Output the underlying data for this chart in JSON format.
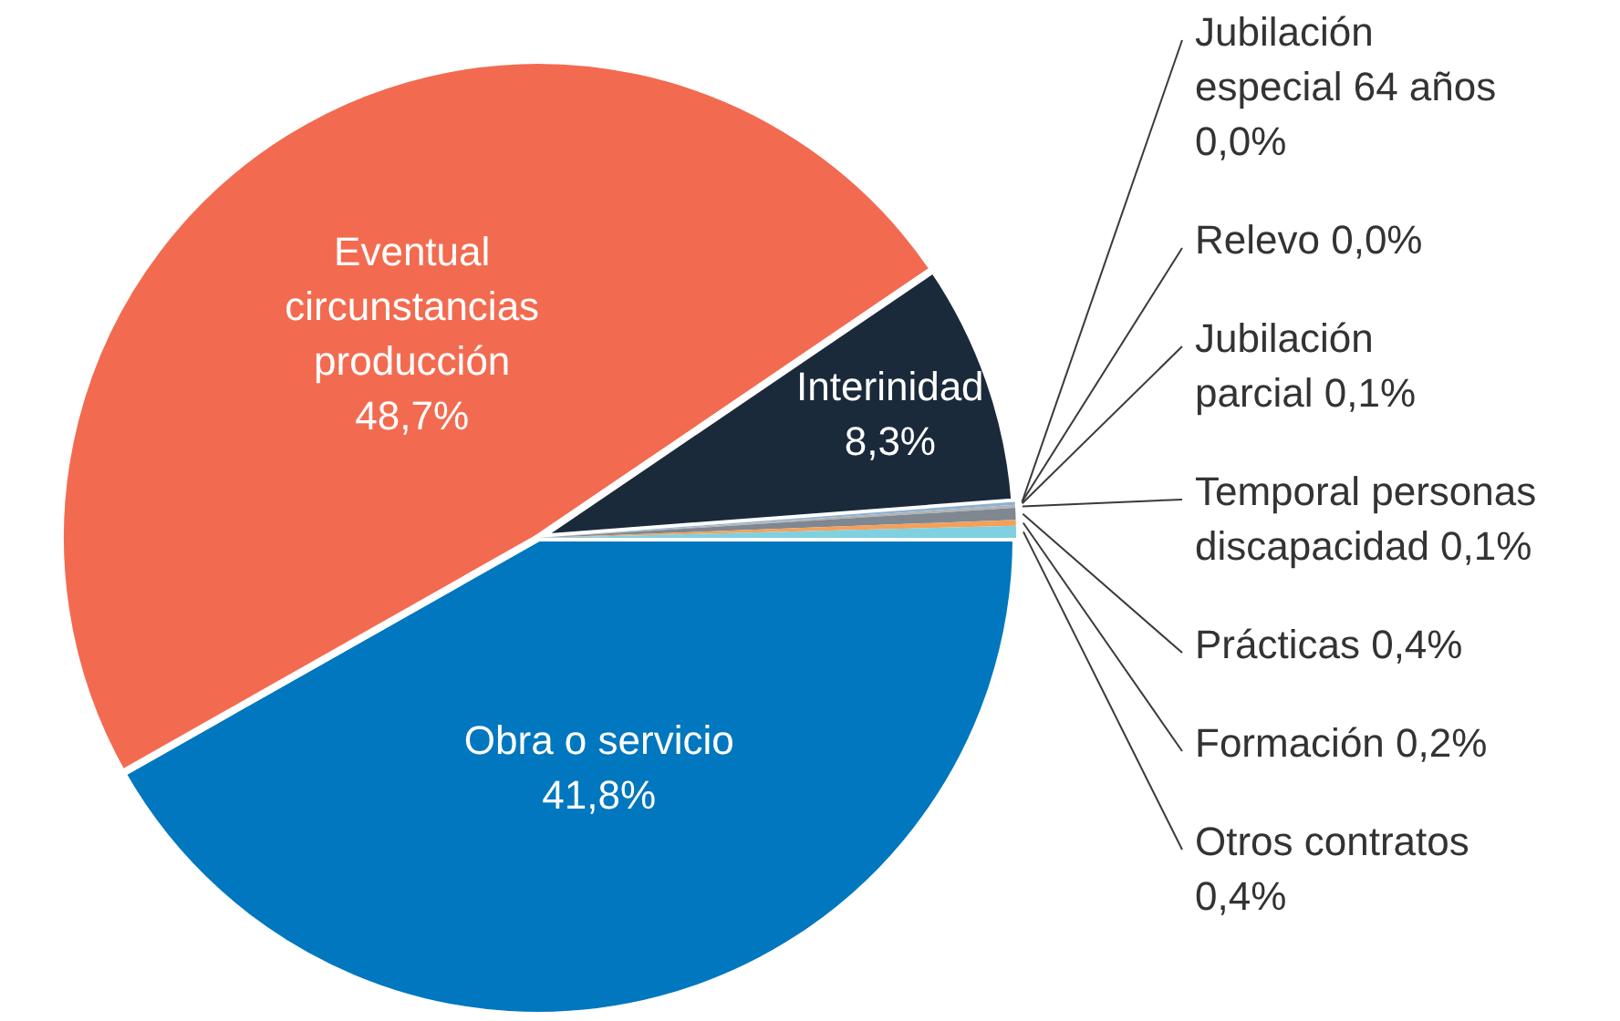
{
  "chart_data": {
    "type": "pie",
    "categories": [
      "Obra o servicio",
      "Eventual circunstancias producción",
      "Interinidad",
      "Jubilación especial 64 años",
      "Relevo",
      "Jubilación parcial",
      "Temporal personas discapacidad",
      "Prácticas",
      "Formación",
      "Otros contratos"
    ],
    "values": [
      41.8,
      48.7,
      8.3,
      0.0,
      0.0,
      0.1,
      0.1,
      0.4,
      0.2,
      0.4
    ],
    "value_labels": [
      "41,8%",
      "48,7%",
      "8,3%",
      "0,0%",
      "0,0%",
      "0,1%",
      "0,1%",
      "0,4%",
      "0,2%",
      "0,4%"
    ],
    "colors": [
      "#0077be",
      "#f26b50",
      "#1b2a3a",
      "#a9c6e0",
      "#c4c8cc",
      "#8fb0d0",
      "#b0b4b8",
      "#7f8790",
      "#f5a05a",
      "#7fd0e0"
    ]
  }
}
